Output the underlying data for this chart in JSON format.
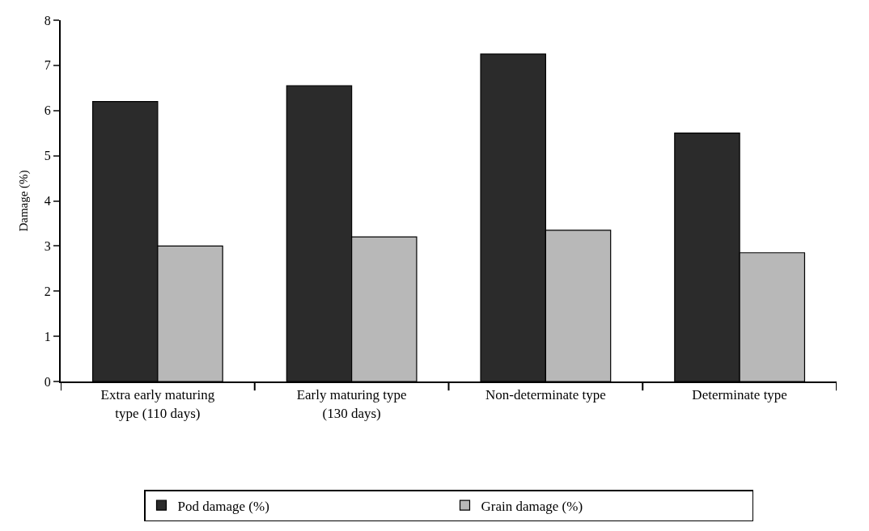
{
  "chart_data": {
    "type": "bar",
    "ylabel": "Damage (%)",
    "categories": [
      "Extra early maturing type (110 days)",
      "Early maturing type (130 days)",
      "Non-determinate type",
      "Determinate type"
    ],
    "series": [
      {
        "name": "Pod damage (%)",
        "color": "#2b2b2b",
        "values": [
          6.2,
          6.55,
          7.25,
          5.5
        ]
      },
      {
        "name": "Grain damage (%)",
        "color": "#b8b8b8",
        "values": [
          3.0,
          3.2,
          3.35,
          2.85
        ]
      }
    ],
    "ylim": [
      0,
      8
    ],
    "yticks": [
      0,
      1,
      2,
      3,
      4,
      5,
      6,
      7,
      8
    ],
    "grid": false,
    "legend": "bottom"
  }
}
